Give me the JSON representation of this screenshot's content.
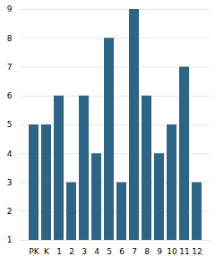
{
  "chart_data": {
    "type": "bar",
    "categories": [
      "PK",
      "K",
      "1",
      "2",
      "3",
      "4",
      "5",
      "6",
      "7",
      "8",
      "9",
      "10",
      "11",
      "12"
    ],
    "values": [
      5,
      5,
      6,
      3,
      6,
      4,
      8,
      3,
      9,
      6,
      4,
      5,
      7,
      3
    ],
    "color": "#2e6484",
    "ylim": [
      1,
      9
    ],
    "yticks": [
      1,
      2,
      3,
      4,
      5,
      6,
      7,
      8,
      9
    ],
    "grid": true
  }
}
